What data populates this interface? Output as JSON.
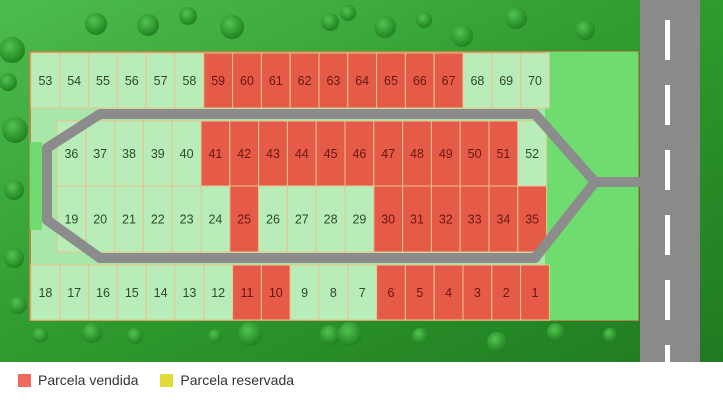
{
  "colors": {
    "sold": "#e65a48",
    "reserved": "#dede3c",
    "available": "#b8ecb8",
    "grass": "#3a9e3a",
    "grass_light": "#6fdc6f",
    "road": "#888888",
    "lot_border": "#c59a5a"
  },
  "legend": [
    {
      "label": "Parcela vendida",
      "color": "#e65a48"
    },
    {
      "label": "Parcela reservada",
      "color": "#dede3c"
    }
  ],
  "lots": {
    "row1": [
      {
        "n": "53",
        "s": "available"
      },
      {
        "n": "54",
        "s": "available"
      },
      {
        "n": "55",
        "s": "available"
      },
      {
        "n": "56",
        "s": "available"
      },
      {
        "n": "57",
        "s": "available"
      },
      {
        "n": "58",
        "s": "available"
      },
      {
        "n": "59",
        "s": "sold"
      },
      {
        "n": "60",
        "s": "sold"
      },
      {
        "n": "61",
        "s": "sold"
      },
      {
        "n": "62",
        "s": "sold"
      },
      {
        "n": "63",
        "s": "sold"
      },
      {
        "n": "64",
        "s": "sold"
      },
      {
        "n": "65",
        "s": "sold"
      },
      {
        "n": "66",
        "s": "sold"
      },
      {
        "n": "67",
        "s": "sold"
      },
      {
        "n": "68",
        "s": "available"
      },
      {
        "n": "69",
        "s": "available"
      },
      {
        "n": "70",
        "s": "available"
      }
    ],
    "row2": [
      {
        "n": "36",
        "s": "available"
      },
      {
        "n": "37",
        "s": "available"
      },
      {
        "n": "38",
        "s": "available"
      },
      {
        "n": "39",
        "s": "available"
      },
      {
        "n": "40",
        "s": "available"
      },
      {
        "n": "41",
        "s": "sold"
      },
      {
        "n": "42",
        "s": "sold"
      },
      {
        "n": "43",
        "s": "sold"
      },
      {
        "n": "44",
        "s": "sold"
      },
      {
        "n": "45",
        "s": "sold"
      },
      {
        "n": "46",
        "s": "sold"
      },
      {
        "n": "47",
        "s": "sold"
      },
      {
        "n": "48",
        "s": "sold"
      },
      {
        "n": "49",
        "s": "sold"
      },
      {
        "n": "50",
        "s": "sold"
      },
      {
        "n": "51",
        "s": "sold"
      },
      {
        "n": "52",
        "s": "available"
      }
    ],
    "row3": [
      {
        "n": "19",
        "s": "available"
      },
      {
        "n": "20",
        "s": "available"
      },
      {
        "n": "21",
        "s": "available"
      },
      {
        "n": "22",
        "s": "available"
      },
      {
        "n": "23",
        "s": "available"
      },
      {
        "n": "24",
        "s": "available"
      },
      {
        "n": "25",
        "s": "sold"
      },
      {
        "n": "26",
        "s": "available"
      },
      {
        "n": "27",
        "s": "available"
      },
      {
        "n": "28",
        "s": "available"
      },
      {
        "n": "29",
        "s": "available"
      },
      {
        "n": "30",
        "s": "sold"
      },
      {
        "n": "31",
        "s": "sold"
      },
      {
        "n": "32",
        "s": "sold"
      },
      {
        "n": "33",
        "s": "sold"
      },
      {
        "n": "34",
        "s": "sold"
      },
      {
        "n": "35",
        "s": "sold"
      }
    ],
    "row4": [
      {
        "n": "18",
        "s": "available"
      },
      {
        "n": "17",
        "s": "available"
      },
      {
        "n": "16",
        "s": "available"
      },
      {
        "n": "15",
        "s": "available"
      },
      {
        "n": "14",
        "s": "available"
      },
      {
        "n": "13",
        "s": "available"
      },
      {
        "n": "12",
        "s": "available"
      },
      {
        "n": "11",
        "s": "sold"
      },
      {
        "n": "10",
        "s": "sold"
      },
      {
        "n": "9",
        "s": "available"
      },
      {
        "n": "8",
        "s": "available"
      },
      {
        "n": "7",
        "s": "available"
      },
      {
        "n": "6",
        "s": "sold"
      },
      {
        "n": "5",
        "s": "sold"
      },
      {
        "n": "4",
        "s": "sold"
      },
      {
        "n": "3",
        "s": "sold"
      },
      {
        "n": "2",
        "s": "sold"
      },
      {
        "n": "1",
        "s": "sold"
      }
    ]
  }
}
